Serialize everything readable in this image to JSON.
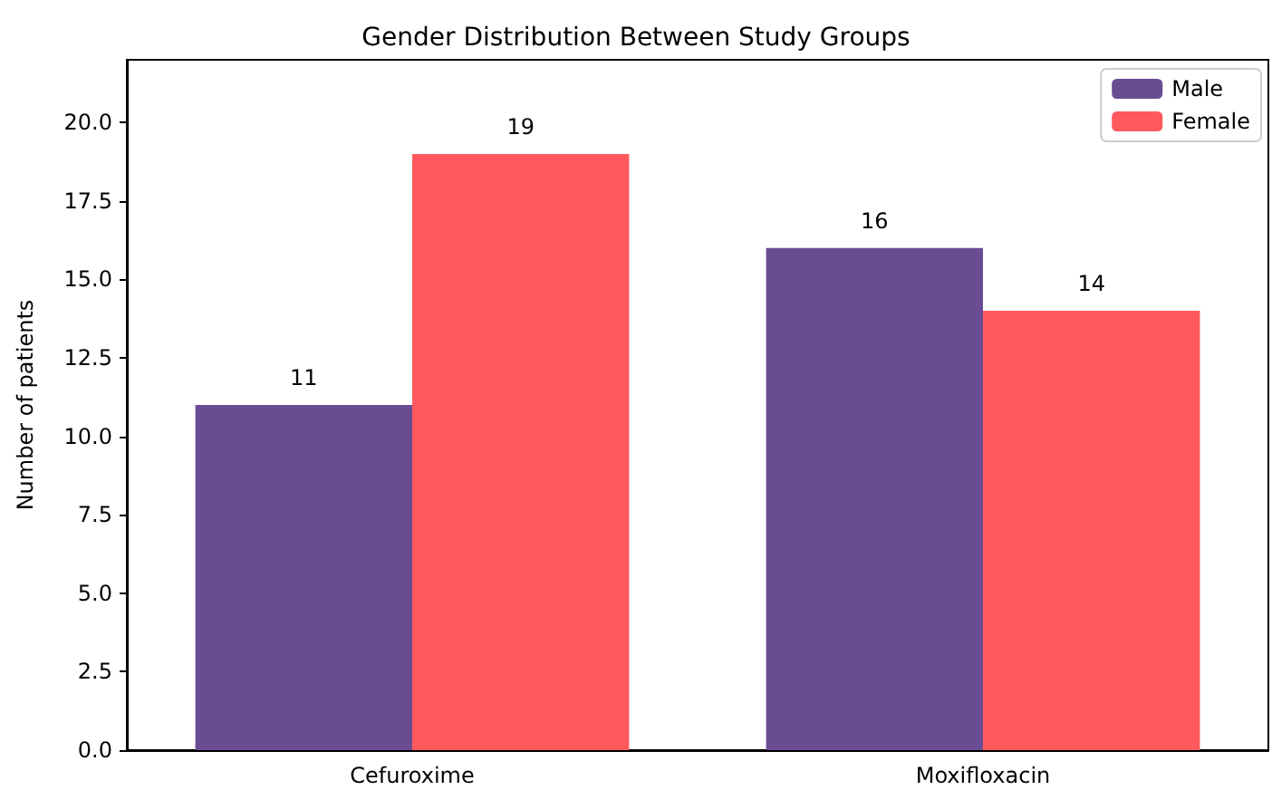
{
  "chart_data": {
    "type": "bar",
    "title": "Gender Distribution Between Study Groups",
    "ylabel": "Number of patients",
    "categories": [
      "Cefuroxime",
      "Moxifloxacin"
    ],
    "series": [
      {
        "name": "Male",
        "color": "#6a4c93",
        "values": [
          11,
          16
        ]
      },
      {
        "name": "Female",
        "color": "#ff595e",
        "values": [
          19,
          14
        ]
      }
    ],
    "ylim": [
      0,
      22
    ],
    "yticks": [
      {
        "value": 0,
        "label": "0.0"
      },
      {
        "value": 2.5,
        "label": "2.5"
      },
      {
        "value": 5,
        "label": "5.0"
      },
      {
        "value": 7.5,
        "label": "7.5"
      },
      {
        "value": 10,
        "label": "10.0"
      },
      {
        "value": 12.5,
        "label": "12.5"
      },
      {
        "value": 15,
        "label": "15.0"
      },
      {
        "value": 17.5,
        "label": "17.5"
      },
      {
        "value": 20,
        "label": "20.0"
      }
    ],
    "data_labels": true,
    "legend": "top right",
    "grid": false
  }
}
